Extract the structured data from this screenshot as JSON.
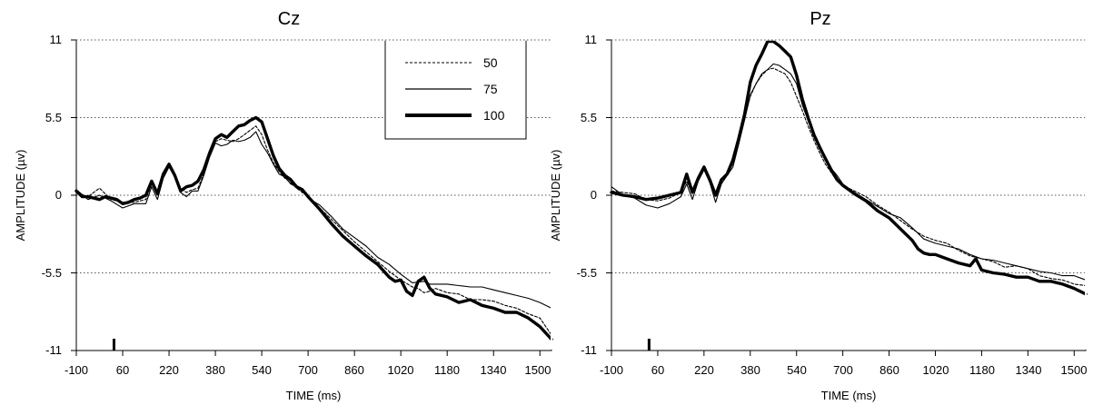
{
  "chart_data": [
    {
      "type": "line",
      "title": "Cz",
      "xlabel": "TIME (ms)",
      "ylabel": "AMPLITUDE (µv)",
      "xlim": [
        -100,
        1540
      ],
      "ylim": [
        -11,
        11
      ],
      "x_ticks": [
        "-100",
        "60",
        "220",
        "380",
        "540",
        "700",
        "860",
        "1020",
        "1180",
        "1340",
        "1500"
      ],
      "y_ticks": [
        "11",
        "5.5",
        "0",
        "-5.5",
        "-11"
      ],
      "grid": "horizontal-dotted",
      "stimulus_marker_x": 30,
      "legend": {
        "placement": "top-right",
        "entries": [
          "50",
          "75",
          "100"
        ]
      },
      "series": [
        {
          "name": "50",
          "style": "dashed",
          "x": [
            -100,
            -60,
            -20,
            20,
            60,
            100,
            140,
            160,
            180,
            200,
            220,
            240,
            260,
            280,
            300,
            320,
            340,
            360,
            380,
            400,
            420,
            440,
            460,
            480,
            500,
            520,
            540,
            560,
            580,
            600,
            620,
            640,
            660,
            680,
            700,
            740,
            780,
            820,
            860,
            900,
            940,
            980,
            1020,
            1060,
            1080,
            1100,
            1120,
            1140,
            1180,
            1220,
            1260,
            1300,
            1340,
            1380,
            1420,
            1460,
            1500,
            1540
          ],
          "y": [
            0.2,
            -0.1,
            0.5,
            -0.3,
            -0.5,
            -0.5,
            -0.3,
            0.8,
            0.1,
            1.3,
            2.1,
            1.5,
            0.5,
            0.2,
            0.4,
            0.5,
            1.5,
            2.8,
            3.8,
            4.0,
            3.9,
            3.8,
            4.0,
            4.3,
            4.6,
            4.9,
            4.3,
            3.2,
            2.3,
            1.7,
            1.2,
            0.9,
            0.5,
            0.2,
            -0.1,
            -0.9,
            -1.7,
            -2.5,
            -3.3,
            -4.0,
            -4.7,
            -5.4,
            -6.0,
            -6.5,
            -6.6,
            -6.9,
            -6.8,
            -6.6,
            -6.9,
            -7.0,
            -7.4,
            -7.4,
            -7.5,
            -7.8,
            -8.0,
            -8.4,
            -8.7,
            -9.9
          ]
        },
        {
          "name": "75",
          "style": "solid-thin",
          "x": [
            -100,
            -60,
            -20,
            20,
            60,
            100,
            140,
            160,
            180,
            200,
            220,
            240,
            260,
            280,
            300,
            320,
            340,
            360,
            380,
            400,
            420,
            440,
            460,
            480,
            500,
            520,
            540,
            560,
            580,
            600,
            620,
            640,
            660,
            680,
            700,
            740,
            780,
            820,
            860,
            900,
            940,
            980,
            1020,
            1060,
            1100,
            1120,
            1140,
            1180,
            1220,
            1260,
            1300,
            1340,
            1380,
            1420,
            1460,
            1500,
            1540
          ],
          "y": [
            0.4,
            -0.3,
            0.0,
            -0.4,
            -0.9,
            -0.6,
            -0.6,
            0.6,
            -0.3,
            1.2,
            2.0,
            1.3,
            0.2,
            -0.1,
            0.3,
            0.3,
            1.4,
            2.7,
            3.7,
            3.5,
            3.6,
            3.9,
            3.8,
            3.9,
            4.1,
            4.5,
            3.6,
            3.0,
            2.2,
            1.5,
            1.3,
            0.8,
            0.6,
            0.4,
            -0.2,
            -0.7,
            -1.5,
            -2.4,
            -3.0,
            -3.6,
            -4.4,
            -4.9,
            -5.6,
            -6.2,
            -6.1,
            -6.3,
            -6.3,
            -6.3,
            -6.4,
            -6.5,
            -6.5,
            -6.7,
            -6.9,
            -7.1,
            -7.3,
            -7.6,
            -8.0
          ]
        },
        {
          "name": "100",
          "style": "solid-thick",
          "x": [
            -100,
            -80,
            -60,
            -40,
            -20,
            0,
            20,
            40,
            60,
            80,
            100,
            120,
            140,
            160,
            180,
            200,
            220,
            240,
            260,
            280,
            300,
            320,
            340,
            360,
            380,
            400,
            420,
            440,
            460,
            480,
            500,
            520,
            540,
            560,
            580,
            600,
            620,
            640,
            660,
            680,
            700,
            740,
            780,
            820,
            860,
            900,
            940,
            980,
            1000,
            1020,
            1040,
            1060,
            1080,
            1100,
            1120,
            1140,
            1180,
            1220,
            1260,
            1300,
            1340,
            1380,
            1420,
            1460,
            1500,
            1540
          ],
          "y": [
            0.3,
            -0.1,
            -0.1,
            -0.2,
            -0.3,
            -0.1,
            -0.2,
            -0.3,
            -0.6,
            -0.5,
            -0.3,
            -0.2,
            0.0,
            1.0,
            0.1,
            1.5,
            2.2,
            1.4,
            0.3,
            0.6,
            0.7,
            1.0,
            1.8,
            3.0,
            4.0,
            4.3,
            4.1,
            4.5,
            4.9,
            5.0,
            5.3,
            5.5,
            5.2,
            4.0,
            2.8,
            1.9,
            1.4,
            1.1,
            0.6,
            0.4,
            -0.1,
            -1.0,
            -2.0,
            -2.9,
            -3.6,
            -4.3,
            -4.9,
            -5.8,
            -6.1,
            -6.0,
            -6.8,
            -7.1,
            -6.1,
            -5.8,
            -6.6,
            -7.0,
            -7.2,
            -7.6,
            -7.4,
            -7.8,
            -8.0,
            -8.3,
            -8.3,
            -8.7,
            -9.3,
            -10.2
          ]
        }
      ]
    },
    {
      "type": "line",
      "title": "Pz",
      "xlabel": "TIME (ms)",
      "ylabel": "AMPLITUDE (µv)",
      "xlim": [
        -100,
        1540
      ],
      "ylim": [
        -11,
        11
      ],
      "x_ticks": [
        "-100",
        "60",
        "220",
        "380",
        "540",
        "700",
        "860",
        "1020",
        "1180",
        "1340",
        "1500"
      ],
      "y_ticks": [
        "11",
        "5.5",
        "0",
        "-5.5",
        "-11"
      ],
      "grid": "horizontal-dotted",
      "stimulus_marker_x": 30,
      "series": [
        {
          "name": "50",
          "style": "dashed",
          "x": [
            -100,
            -60,
            -20,
            20,
            60,
            100,
            140,
            160,
            180,
            200,
            220,
            240,
            260,
            280,
            300,
            320,
            340,
            360,
            380,
            400,
            420,
            440,
            460,
            480,
            500,
            520,
            540,
            560,
            580,
            600,
            620,
            640,
            660,
            680,
            700,
            740,
            780,
            820,
            860,
            900,
            940,
            980,
            1020,
            1060,
            1100,
            1140,
            1180,
            1220,
            1260,
            1300,
            1340,
            1380,
            1420,
            1460,
            1500,
            1540
          ],
          "y": [
            0.3,
            0.2,
            0.1,
            -0.3,
            -0.4,
            -0.2,
            0.2,
            1.0,
            0.1,
            1.0,
            2.0,
            1.2,
            0.2,
            1.0,
            1.6,
            2.2,
            3.8,
            5.4,
            7.0,
            7.9,
            8.5,
            8.9,
            9.0,
            8.8,
            8.6,
            8.0,
            7.0,
            6.0,
            4.9,
            3.9,
            3.0,
            2.2,
            1.6,
            1.0,
            0.7,
            0.3,
            -0.1,
            -0.7,
            -1.2,
            -1.8,
            -2.4,
            -2.9,
            -3.2,
            -3.4,
            -3.9,
            -4.3,
            -4.5,
            -4.7,
            -5.1,
            -5.0,
            -5.2,
            -5.7,
            -5.9,
            -6.0,
            -6.3,
            -6.4
          ]
        },
        {
          "name": "75",
          "style": "solid-thin",
          "x": [
            -100,
            -60,
            -20,
            20,
            60,
            100,
            140,
            160,
            180,
            200,
            220,
            240,
            260,
            280,
            300,
            320,
            340,
            360,
            380,
            400,
            420,
            440,
            460,
            480,
            500,
            520,
            540,
            560,
            580,
            600,
            620,
            640,
            660,
            680,
            700,
            740,
            780,
            820,
            860,
            900,
            940,
            980,
            1020,
            1060,
            1100,
            1140,
            1180,
            1220,
            1260,
            1300,
            1340,
            1380,
            1420,
            1460,
            1500,
            1540
          ],
          "y": [
            0.6,
            0.0,
            -0.2,
            -0.7,
            -0.9,
            -0.6,
            -0.1,
            0.8,
            -0.3,
            1.0,
            1.8,
            0.9,
            -0.5,
            0.8,
            1.4,
            2.0,
            3.6,
            5.3,
            7.1,
            7.9,
            8.6,
            8.9,
            9.3,
            9.2,
            8.9,
            8.6,
            7.9,
            6.4,
            5.3,
            4.3,
            3.5,
            2.6,
            1.9,
            1.4,
            0.8,
            0.2,
            -0.3,
            -0.8,
            -1.3,
            -1.6,
            -2.3,
            -3.1,
            -3.4,
            -3.6,
            -3.8,
            -4.2,
            -4.5,
            -4.6,
            -4.8,
            -5.0,
            -5.2,
            -5.4,
            -5.5,
            -5.7,
            -5.7,
            -6.0
          ]
        },
        {
          "name": "100",
          "style": "solid-thick",
          "x": [
            -100,
            -60,
            -20,
            20,
            60,
            100,
            140,
            160,
            180,
            200,
            220,
            240,
            260,
            280,
            300,
            320,
            340,
            360,
            380,
            400,
            420,
            440,
            460,
            480,
            500,
            520,
            540,
            560,
            580,
            600,
            620,
            640,
            660,
            680,
            700,
            740,
            780,
            820,
            860,
            900,
            940,
            960,
            980,
            1000,
            1020,
            1060,
            1100,
            1140,
            1160,
            1180,
            1220,
            1260,
            1300,
            1340,
            1380,
            1420,
            1460,
            1500,
            1540
          ],
          "y": [
            0.2,
            0.0,
            -0.1,
            -0.3,
            -0.2,
            0.0,
            0.2,
            1.5,
            0.2,
            1.2,
            2.0,
            1.1,
            0.0,
            1.1,
            1.5,
            2.5,
            4.0,
            5.7,
            8.0,
            9.2,
            10.0,
            10.9,
            10.9,
            10.6,
            10.2,
            9.8,
            8.5,
            6.8,
            5.5,
            4.3,
            3.4,
            2.6,
            1.8,
            1.1,
            0.7,
            0.1,
            -0.4,
            -1.1,
            -1.6,
            -2.4,
            -3.2,
            -3.8,
            -4.1,
            -4.2,
            -4.2,
            -4.5,
            -4.8,
            -5.0,
            -4.5,
            -5.3,
            -5.5,
            -5.6,
            -5.8,
            -5.8,
            -6.1,
            -6.1,
            -6.3,
            -6.6,
            -7.0
          ]
        }
      ]
    }
  ]
}
